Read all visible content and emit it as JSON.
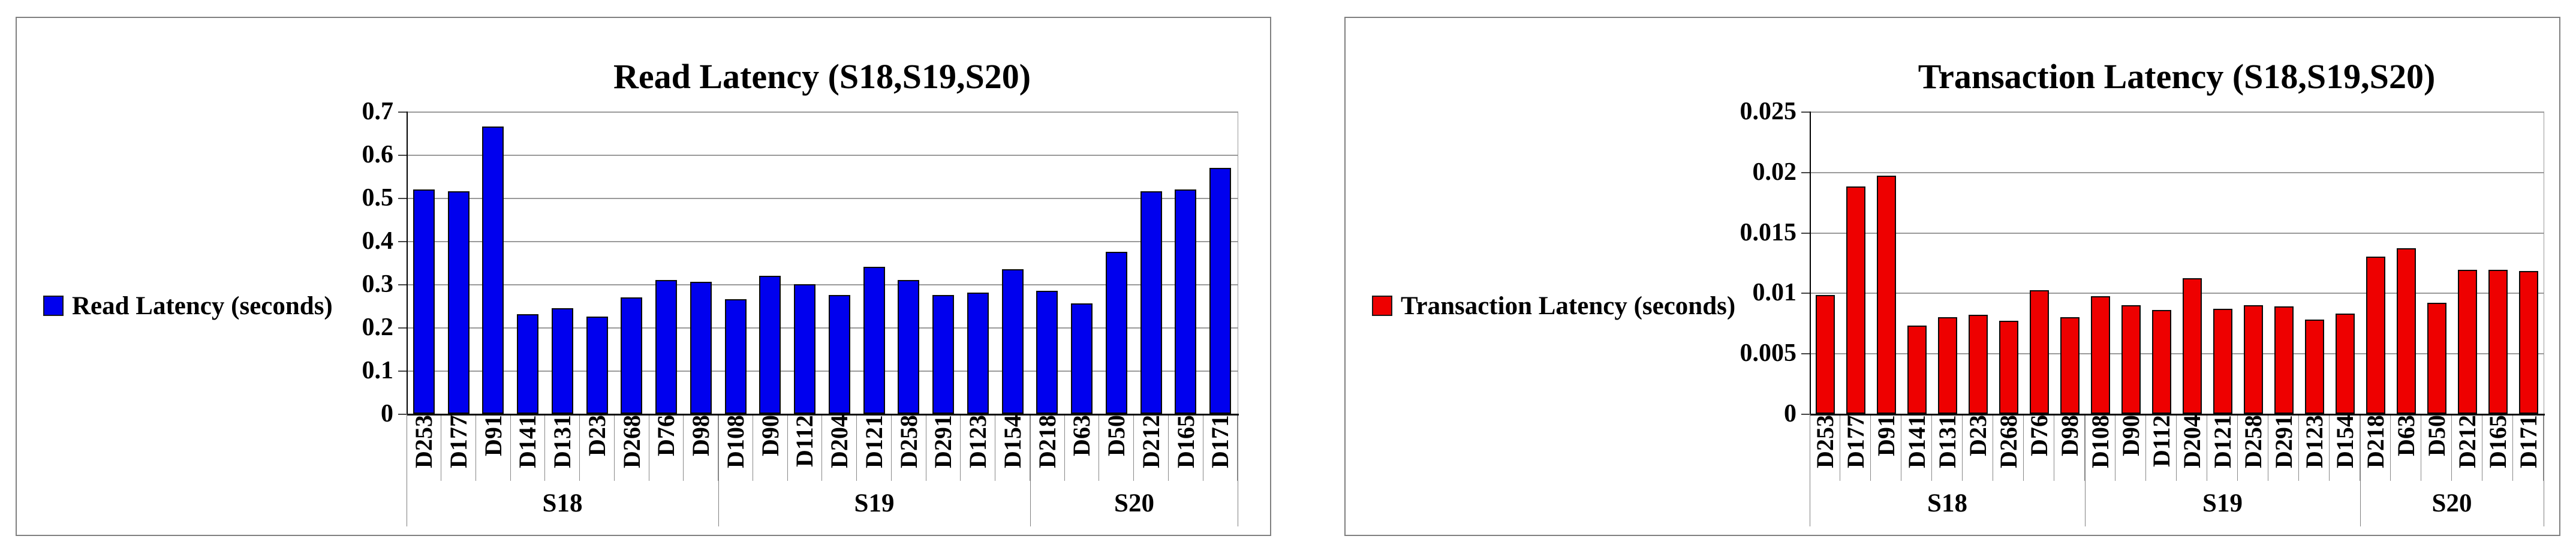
{
  "chart_data": [
    {
      "type": "bar",
      "title": "Read Latency (S18,S19,S20)",
      "legend": "Read Latency (seconds)",
      "color": "#0000EE",
      "ylim": [
        0,
        0.7
      ],
      "ytick_step": 0.1,
      "ytick_labels": [
        "0",
        "0.1",
        "0.2",
        "0.3",
        "0.4",
        "0.5",
        "0.6",
        "0.7"
      ],
      "grid": true,
      "legend_position": "left",
      "categories": [
        "D253",
        "D177",
        "D91",
        "D141",
        "D131",
        "D23",
        "D268",
        "D76",
        "D98",
        "D108",
        "D90",
        "D112",
        "D204",
        "D121",
        "D258",
        "D291",
        "D123",
        "D154",
        "D218",
        "D63",
        "D50",
        "D212",
        "D165",
        "D171"
      ],
      "groups": [
        {
          "label": "S18",
          "count": 9
        },
        {
          "label": "S19",
          "count": 9
        },
        {
          "label": "S20",
          "count": 6
        }
      ],
      "values": [
        0.52,
        0.515,
        0.665,
        0.23,
        0.245,
        0.225,
        0.27,
        0.31,
        0.305,
        0.265,
        0.32,
        0.3,
        0.275,
        0.34,
        0.31,
        0.275,
        0.28,
        0.335,
        0.285,
        0.255,
        0.375,
        0.515,
        0.52,
        0.57
      ]
    },
    {
      "type": "bar",
      "title": "Transaction Latency (S18,S19,S20)",
      "legend": "Transaction Latency (seconds)",
      "color": "#EE0000",
      "ylim": [
        0,
        0.025
      ],
      "ytick_step": 0.005,
      "ytick_labels": [
        "0",
        "0.005",
        "0.01",
        "0.015",
        "0.02",
        "0.025"
      ],
      "grid": true,
      "legend_position": "left",
      "categories": [
        "D253",
        "D177",
        "D91",
        "D141",
        "D131",
        "D23",
        "D268",
        "D76",
        "D98",
        "D108",
        "D90",
        "D112",
        "D204",
        "D121",
        "D258",
        "D291",
        "D123",
        "D154",
        "D218",
        "D63",
        "D50",
        "D212",
        "D165",
        "D171"
      ],
      "groups": [
        {
          "label": "S18",
          "count": 9
        },
        {
          "label": "S19",
          "count": 9
        },
        {
          "label": "S20",
          "count": 6
        }
      ],
      "values": [
        0.0098,
        0.0188,
        0.0197,
        0.0073,
        0.008,
        0.0082,
        0.0077,
        0.0102,
        0.008,
        0.0097,
        0.009,
        0.0086,
        0.0112,
        0.0087,
        0.009,
        0.0089,
        0.0078,
        0.0083,
        0.013,
        0.0137,
        0.0092,
        0.0119,
        0.0119,
        0.0118
      ]
    }
  ]
}
